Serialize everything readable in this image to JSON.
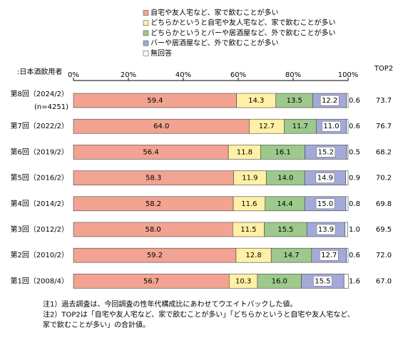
{
  "chart_data": {
    "type": "bar",
    "orientation": "horizontal",
    "stacked": true,
    "subtitle": ":日本酒飲用者",
    "categories": [
      "第8回（2024/2）",
      "第7回（2022/2）",
      "第6回（2019/2）",
      "第5回（2016/2）",
      "第4回（2014/2）",
      "第3回（2012/2）",
      "第2回（2010/2）",
      "第1回（2008/4）"
    ],
    "sample_note": "(n=4251)",
    "xlim": [
      0,
      100
    ],
    "xticks": [
      {
        "value": 0,
        "label": "0%"
      },
      {
        "value": 20,
        "label": "20%"
      },
      {
        "value": 40,
        "label": "40%"
      },
      {
        "value": 60,
        "label": "60%"
      },
      {
        "value": 80,
        "label": "80%"
      },
      {
        "value": 100,
        "label": "100%"
      }
    ],
    "series": [
      {
        "name": "自宅や友人宅など、家で飲むことが多い",
        "color": "#f2a392",
        "values": [
          59.4,
          64,
          56.4,
          58.3,
          58.2,
          58,
          59.2,
          56.7
        ],
        "value_labels": [
          "59.4",
          "64.0",
          "56.4",
          "58.3",
          "58.2",
          "58.0",
          "59.2",
          "56.7"
        ]
      },
      {
        "name": "どちらかというと自宅や友人宅など、家で飲むことが多い",
        "color": "#fff0a6",
        "values": [
          14.3,
          12.7,
          11.8,
          11.9,
          11.6,
          11.5,
          12.8,
          10.3
        ],
        "value_labels": [
          "14.3",
          "12.7",
          "11.8",
          "11.9",
          "11.6",
          "11.5",
          "12.8",
          "10.3"
        ]
      },
      {
        "name": "どちらかというとバーや居酒屋など、外で飲むことが多い",
        "color": "#9dc98c",
        "values": [
          13.5,
          11.7,
          16.1,
          14,
          14.4,
          15.5,
          14.7,
          16
        ],
        "value_labels": [
          "13.5",
          "11.7",
          "16.1",
          "14.0",
          "14.4",
          "15.5",
          "14.7",
          "16.0"
        ]
      },
      {
        "name": "バーや居酒屋など、外で飲むことが多い",
        "color": "#a3aad9",
        "values": [
          12.2,
          11,
          15.2,
          14.9,
          15,
          13.9,
          12.7,
          15.5
        ],
        "value_labels": [
          "12.2",
          "11.0",
          "15.2",
          "14.9",
          "15.0",
          "13.9",
          "12.7",
          "15.5"
        ]
      },
      {
        "name": "無回答",
        "color": "#ffffff",
        "values": [
          0.6,
          0.6,
          0.5,
          0.9,
          0.8,
          1,
          0.6,
          1.6
        ],
        "value_labels": [
          "0.6",
          "0.6",
          "0.5",
          "0.9",
          "0.8",
          "1.0",
          "0.6",
          "1.6"
        ]
      }
    ],
    "top2_title": "TOP2",
    "top2_values": [
      73.7,
      76.7,
      68.2,
      70.2,
      69.8,
      69.5,
      72,
      67
    ],
    "top2_labels": [
      "73.7",
      "76.7",
      "68.2",
      "70.2",
      "69.8",
      "69.5",
      "72.0",
      "67.0"
    ],
    "notes": [
      "注1）過去調査は、今回調査の性年代構成比にあわせてウエイトバックした値。",
      "注2）TOP2は「自宅や友人宅など、家で飲むことが多い」「どちらかというと自宅や友人宅など、",
      "家で飲むことが多い」の合計値。"
    ]
  }
}
